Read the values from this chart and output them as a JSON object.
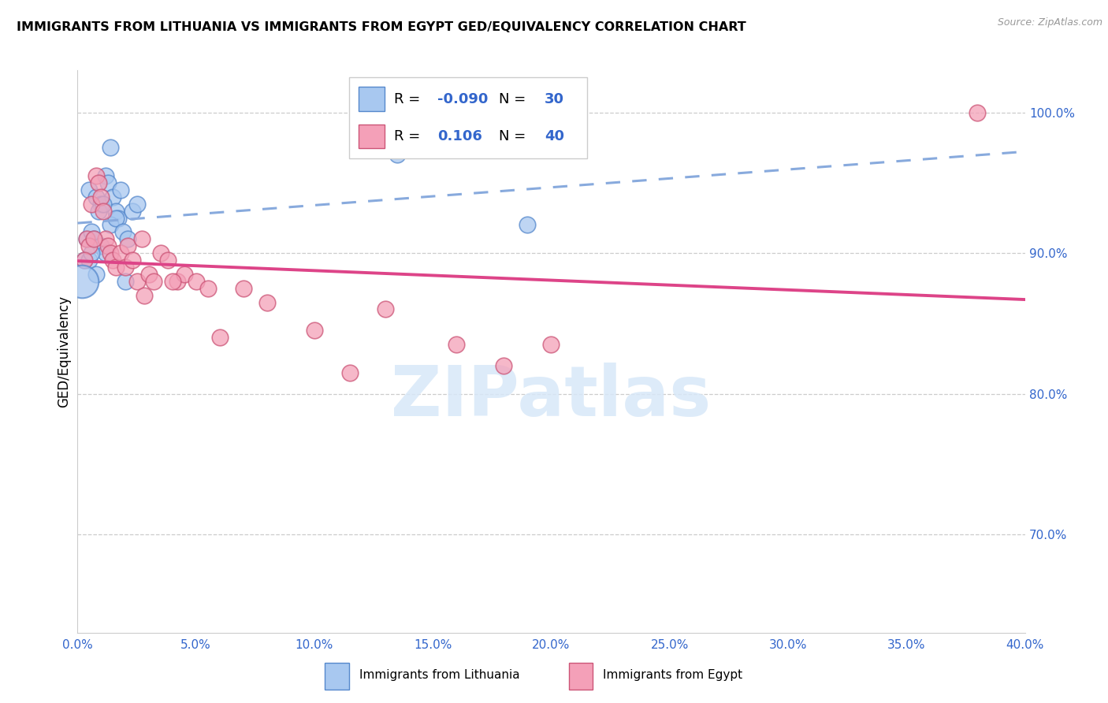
{
  "title": "IMMIGRANTS FROM LITHUANIA VS IMMIGRANTS FROM EGYPT GED/EQUIVALENCY CORRELATION CHART",
  "source": "Source: ZipAtlas.com",
  "ylabel": "GED/Equivalency",
  "right_yticks": [
    100.0,
    90.0,
    80.0,
    70.0
  ],
  "xmin": 0.0,
  "xmax": 40.0,
  "ymin": 63.0,
  "ymax": 103.0,
  "legend_r_lith": "-0.090",
  "legend_n_lith": "30",
  "legend_r_egypt": "0.106",
  "legend_n_egypt": "40",
  "lith_color": "#A8C8F0",
  "egypt_color": "#F4A0B8",
  "lith_edge_color": "#5588CC",
  "egypt_edge_color": "#CC5577",
  "lith_line_color": "#3366BB",
  "egypt_line_color": "#DD4488",
  "dashed_line_color": "#88AADD",
  "watermark_color": "#D8E8F8",
  "watermark": "ZIPatlas",
  "lith_x": [
    1.4,
    0.5,
    0.8,
    1.0,
    1.2,
    1.3,
    1.5,
    1.6,
    1.7,
    1.8,
    0.9,
    1.1,
    1.4,
    1.6,
    1.9,
    2.1,
    2.3,
    2.5,
    0.4,
    0.6,
    0.7,
    1.0,
    1.2,
    0.3,
    0.5,
    0.6,
    0.8,
    13.5,
    19.0,
    2.0
  ],
  "lith_y": [
    97.5,
    94.5,
    94.0,
    93.5,
    95.5,
    95.0,
    94.0,
    93.0,
    92.5,
    94.5,
    93.0,
    93.5,
    92.0,
    92.5,
    91.5,
    91.0,
    93.0,
    93.5,
    91.0,
    91.5,
    91.0,
    90.5,
    90.0,
    89.5,
    89.5,
    90.0,
    88.5,
    97.0,
    92.0,
    88.0
  ],
  "egypt_x": [
    0.4,
    0.5,
    0.6,
    0.8,
    0.9,
    1.0,
    1.1,
    1.2,
    1.3,
    1.4,
    1.5,
    1.6,
    1.8,
    2.0,
    2.1,
    2.3,
    2.5,
    2.7,
    3.0,
    3.2,
    3.5,
    3.8,
    4.2,
    4.5,
    5.0,
    5.5,
    6.0,
    7.0,
    8.0,
    10.0,
    11.5,
    13.0,
    16.0,
    18.0,
    20.0,
    38.0,
    0.3,
    0.7,
    2.8,
    4.0
  ],
  "egypt_y": [
    91.0,
    90.5,
    93.5,
    95.5,
    95.0,
    94.0,
    93.0,
    91.0,
    90.5,
    90.0,
    89.5,
    89.0,
    90.0,
    89.0,
    90.5,
    89.5,
    88.0,
    91.0,
    88.5,
    88.0,
    90.0,
    89.5,
    88.0,
    88.5,
    88.0,
    87.5,
    84.0,
    87.5,
    86.5,
    84.5,
    81.5,
    86.0,
    83.5,
    82.0,
    83.5,
    100.0,
    89.5,
    91.0,
    87.0,
    88.0
  ],
  "lith_big_x": [
    0.2
  ],
  "lith_big_y": [
    88.0
  ],
  "x_tick_vals": [
    0,
    5,
    10,
    15,
    20,
    25,
    30,
    35,
    40
  ]
}
